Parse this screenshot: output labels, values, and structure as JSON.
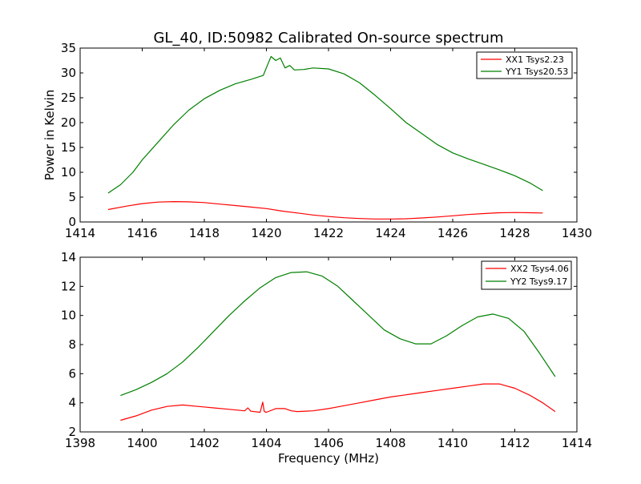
{
  "figure": {
    "title": "GL_40, ID:50982 Calibrated On-source spectrum"
  },
  "chart_data": [
    {
      "type": "line",
      "title": "GL_40, ID:50982 Calibrated On-source spectrum",
      "xlabel": "",
      "ylabel": "Power in Kelvin",
      "xlim": [
        1414,
        1430
      ],
      "ylim": [
        0,
        35
      ],
      "xticks": [
        1414,
        1416,
        1418,
        1420,
        1422,
        1424,
        1426,
        1428,
        1430
      ],
      "yticks": [
        0,
        5,
        10,
        15,
        20,
        25,
        30,
        35
      ],
      "grid": false,
      "legend_position": "top-right",
      "series": [
        {
          "name": "XX1 Tsys2.23",
          "color": "#ff0000",
          "x": [
            1414.9,
            1415.5,
            1416.0,
            1416.5,
            1417.0,
            1417.5,
            1418.0,
            1418.5,
            1419.0,
            1419.5,
            1420.0,
            1420.5,
            1421.0,
            1421.5,
            1422.0,
            1422.5,
            1423.0,
            1423.5,
            1424.0,
            1424.5,
            1425.0,
            1425.5,
            1426.0,
            1426.5,
            1427.0,
            1427.5,
            1428.0,
            1428.5,
            1428.9
          ],
          "values": [
            2.5,
            3.2,
            3.7,
            4.0,
            4.1,
            4.05,
            3.9,
            3.6,
            3.3,
            3.0,
            2.7,
            2.2,
            1.8,
            1.4,
            1.1,
            0.85,
            0.7,
            0.6,
            0.6,
            0.65,
            0.8,
            1.0,
            1.25,
            1.5,
            1.7,
            1.85,
            1.9,
            1.85,
            1.8
          ]
        },
        {
          "name": "YY1 Tsys20.53",
          "color": "#008000",
          "x": [
            1414.9,
            1415.3,
            1415.7,
            1416.0,
            1416.5,
            1417.0,
            1417.5,
            1418.0,
            1418.5,
            1419.0,
            1419.5,
            1419.9,
            1420.05,
            1420.15,
            1420.3,
            1420.45,
            1420.6,
            1420.75,
            1420.9,
            1421.2,
            1421.5,
            1422.0,
            1422.5,
            1423.0,
            1423.5,
            1424.0,
            1424.5,
            1425.0,
            1425.5,
            1426.0,
            1426.5,
            1427.0,
            1427.5,
            1428.0,
            1428.5,
            1428.9
          ],
          "values": [
            5.8,
            7.5,
            10.0,
            12.5,
            16.0,
            19.5,
            22.5,
            24.8,
            26.5,
            27.8,
            28.7,
            29.5,
            31.8,
            33.3,
            32.5,
            33.0,
            31.0,
            31.5,
            30.6,
            30.7,
            31.0,
            30.8,
            29.8,
            28.0,
            25.5,
            22.8,
            20.0,
            17.8,
            15.6,
            13.9,
            12.7,
            11.6,
            10.5,
            9.3,
            7.8,
            6.3
          ]
        }
      ]
    },
    {
      "type": "line",
      "title": "",
      "xlabel": "Frequency (MHz)",
      "ylabel": "",
      "xlim": [
        1398,
        1414
      ],
      "ylim": [
        2,
        14
      ],
      "xticks": [
        1398,
        1400,
        1402,
        1404,
        1406,
        1408,
        1410,
        1412,
        1414
      ],
      "yticks": [
        2,
        4,
        6,
        8,
        10,
        12,
        14
      ],
      "grid": false,
      "legend_position": "top-right",
      "series": [
        {
          "name": "XX2 Tsys4.06",
          "color": "#ff0000",
          "x": [
            1399.3,
            1399.8,
            1400.3,
            1400.8,
            1401.3,
            1401.8,
            1402.3,
            1402.8,
            1403.3,
            1403.4,
            1403.5,
            1403.8,
            1403.88,
            1403.93,
            1404.0,
            1404.3,
            1404.6,
            1404.8,
            1405.0,
            1405.5,
            1406.0,
            1406.5,
            1407.0,
            1407.5,
            1408.0,
            1408.5,
            1409.0,
            1409.5,
            1410.0,
            1410.5,
            1411.0,
            1411.5,
            1412.0,
            1412.5,
            1412.9,
            1413.3
          ],
          "values": [
            2.8,
            3.1,
            3.5,
            3.75,
            3.85,
            3.75,
            3.65,
            3.55,
            3.45,
            3.65,
            3.42,
            3.35,
            4.05,
            3.4,
            3.35,
            3.6,
            3.6,
            3.45,
            3.4,
            3.45,
            3.6,
            3.8,
            4.0,
            4.2,
            4.4,
            4.55,
            4.7,
            4.85,
            5.0,
            5.15,
            5.3,
            5.3,
            5.0,
            4.5,
            4.0,
            3.4
          ]
        },
        {
          "name": "YY2 Tsys9.17",
          "color": "#008000",
          "x": [
            1399.3,
            1399.8,
            1400.3,
            1400.8,
            1401.3,
            1401.8,
            1402.3,
            1402.8,
            1403.3,
            1403.8,
            1404.3,
            1404.8,
            1405.3,
            1405.8,
            1406.3,
            1406.8,
            1407.3,
            1407.8,
            1408.3,
            1408.8,
            1409.3,
            1409.8,
            1410.3,
            1410.8,
            1411.3,
            1411.8,
            1412.3,
            1412.8,
            1413.3
          ],
          "values": [
            4.5,
            4.9,
            5.4,
            6.0,
            6.8,
            7.8,
            8.9,
            10.0,
            11.0,
            11.9,
            12.6,
            12.95,
            13.0,
            12.7,
            12.0,
            11.0,
            10.0,
            9.0,
            8.4,
            8.05,
            8.05,
            8.6,
            9.3,
            9.9,
            10.1,
            9.8,
            8.9,
            7.4,
            5.8
          ]
        }
      ]
    }
  ]
}
